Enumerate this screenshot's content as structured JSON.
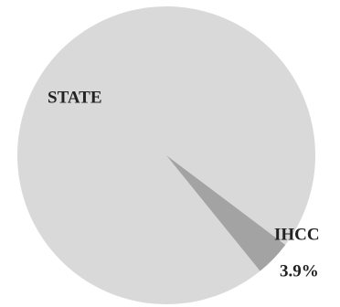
{
  "chart_data": {
    "type": "pie",
    "categories": [
      "STATE",
      "IHCC"
    ],
    "values": [
      96.1,
      3.9
    ],
    "value_labels": [
      null,
      "3.9%"
    ],
    "colors": [
      "#d9d9d9",
      "#a3a3a3"
    ]
  }
}
